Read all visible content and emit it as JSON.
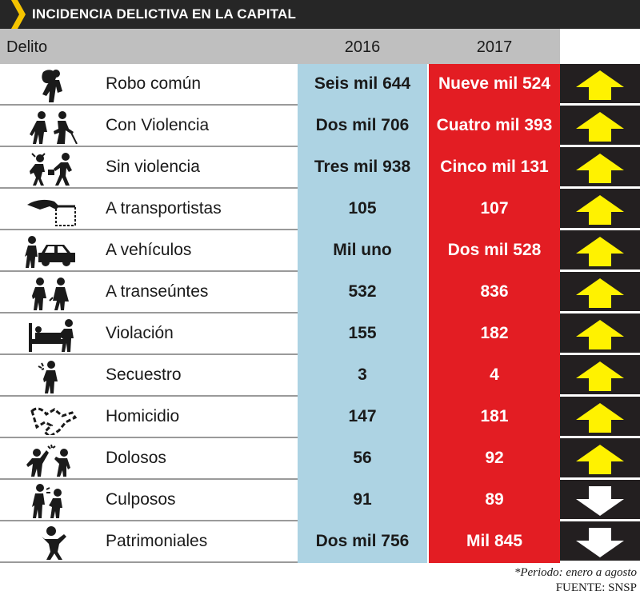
{
  "title": "INCIDENCIA DELICTIVA EN LA CAPITAL",
  "colors": {
    "title_bg": "#262626",
    "accent": "#f5c400",
    "col2016": "#add3e3",
    "col2017": "#e31d23",
    "arrow_col": "#231f20",
    "arrow_up": "#fff200",
    "arrow_down": "#ffffff"
  },
  "header": {
    "delito": "Delito",
    "year1": "2016",
    "year2": "2017"
  },
  "rows": [
    {
      "label": "Robo común",
      "v2016": "Seis mil 644",
      "v2017": "Nueve mil 524",
      "trend": "up",
      "icon": "thief-icon"
    },
    {
      "label": "Con Violencia",
      "v2016": "Dos mil 706",
      "v2017": "Cuatro mil 393",
      "trend": "up",
      "icon": "assault-icon"
    },
    {
      "label": "Sin violencia",
      "v2016": "Tres mil 938",
      "v2017": "Cinco mil 131",
      "trend": "up",
      "icon": "purse-snatch-icon"
    },
    {
      "label": "A transportistas",
      "v2016": "105",
      "v2017": "107",
      "trend": "up",
      "icon": "pickpocket-icon"
    },
    {
      "label": "A vehículos",
      "v2016": "Mil uno",
      "v2017": "Dos mil 528",
      "trend": "up",
      "icon": "car-theft-icon"
    },
    {
      "label": "A transeúntes",
      "v2016": "532",
      "v2017": "836",
      "trend": "up",
      "icon": "pedestrians-icon"
    },
    {
      "label": "Violación",
      "v2016": "155",
      "v2017": "182",
      "trend": "up",
      "icon": "bed-assault-icon"
    },
    {
      "label": "Secuestro",
      "v2016": "3",
      "v2017": "4",
      "trend": "up",
      "icon": "kidnap-icon"
    },
    {
      "label": "Homicidio",
      "v2016": "147",
      "v2017": "181",
      "trend": "up",
      "icon": "body-outline-icon"
    },
    {
      "label": "Dolosos",
      "v2016": "56",
      "v2017": "92",
      "trend": "up",
      "icon": "fight-icon"
    },
    {
      "label": "Culposos",
      "v2016": "91",
      "v2017": "89",
      "trend": "down",
      "icon": "accident-icon"
    },
    {
      "label": "Patrimoniales",
      "v2016": "Dos mil 756",
      "v2017": "Mil 845",
      "trend": "down",
      "icon": "victim-icon"
    }
  ],
  "footnote": "*Periodo: enero a agosto",
  "source": "FUENTE: SNSP"
}
